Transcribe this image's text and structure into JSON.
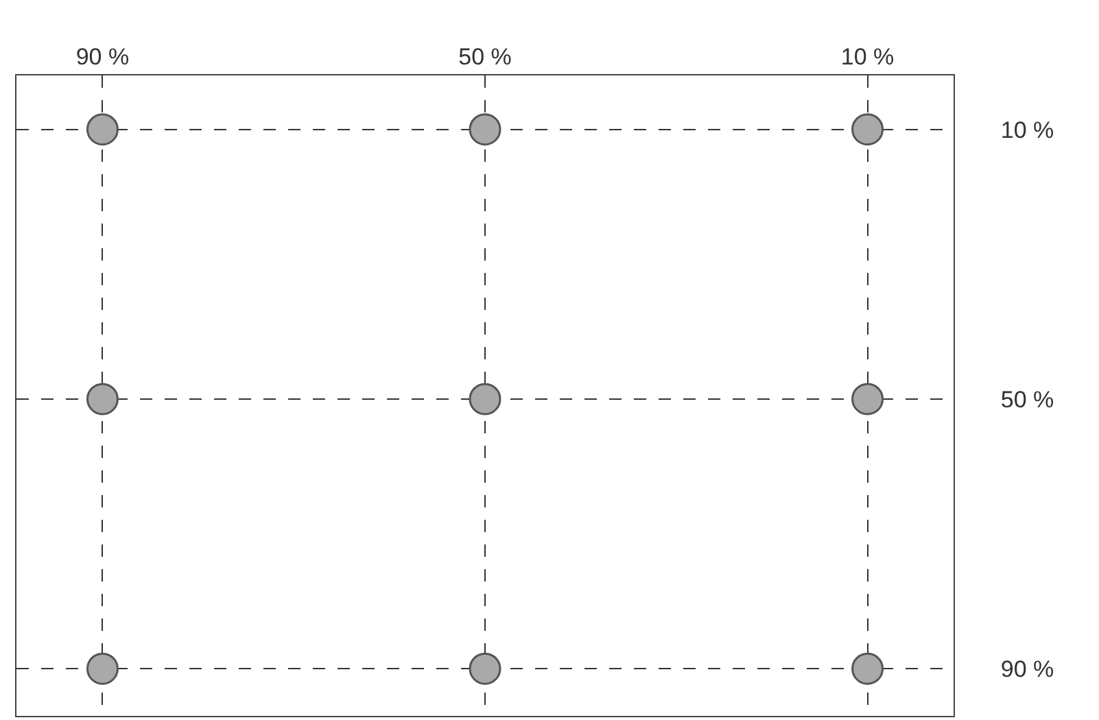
{
  "chart_data": {
    "type": "scatter",
    "marker": "circle",
    "line_style": "dashed",
    "grid": true,
    "x": [
      90,
      50,
      10,
      90,
      50,
      10,
      90,
      50,
      10
    ],
    "values": [
      10,
      10,
      10,
      50,
      50,
      50,
      90,
      90,
      90
    ],
    "color": "#a8a9a8",
    "xlim": [
      99,
      1
    ],
    "xticks": [
      {
        "value": 90,
        "label": "90 %"
      },
      {
        "value": 50,
        "label": "50 %"
      },
      {
        "value": 10,
        "label": "10 %"
      }
    ],
    "ylim": [
      97,
      2
    ],
    "yticks": [
      {
        "value": 10,
        "label": "10 %"
      },
      {
        "value": 50,
        "label": "50 %"
      },
      {
        "value": 90,
        "label": "90 %"
      }
    ]
  }
}
